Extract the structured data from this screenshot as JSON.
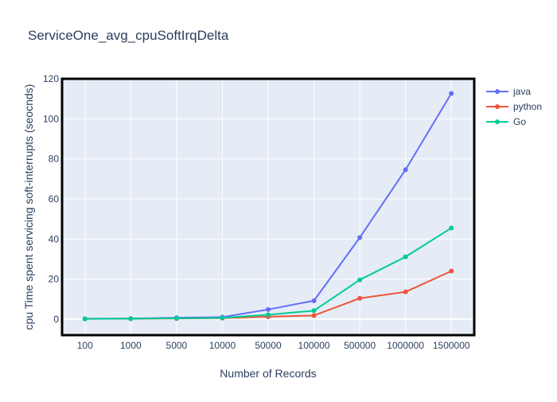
{
  "chart_data": {
    "type": "line",
    "title": "ServiceOne_avg_cpuSoftIrqDelta",
    "xlabel": "Number of Records",
    "ylabel": "cpu Time spent servicing soft-interrupts (seocnds)",
    "categories": [
      "100",
      "1000",
      "5000",
      "10000",
      "50000",
      "100000",
      "500000",
      "1000000",
      "1500000"
    ],
    "ylim": [
      -8,
      120
    ],
    "yticks": [
      0,
      20,
      40,
      60,
      80,
      100,
      120
    ],
    "grid": true,
    "legend_position": "top-right",
    "series": [
      {
        "name": "java",
        "color": "#636efa",
        "values": [
          0.2,
          0.3,
          0.7,
          1.0,
          4.8,
          9.2,
          40.7,
          74.6,
          112.7
        ]
      },
      {
        "name": "python",
        "color": "#ef553b",
        "values": [
          0.1,
          0.2,
          0.3,
          0.5,
          1.2,
          1.8,
          10.4,
          13.6,
          24.0
        ]
      },
      {
        "name": "Go",
        "color": "#00cc96",
        "values": [
          0.1,
          0.2,
          0.4,
          0.6,
          2.2,
          4.2,
          19.6,
          31.1,
          45.5
        ]
      }
    ]
  }
}
